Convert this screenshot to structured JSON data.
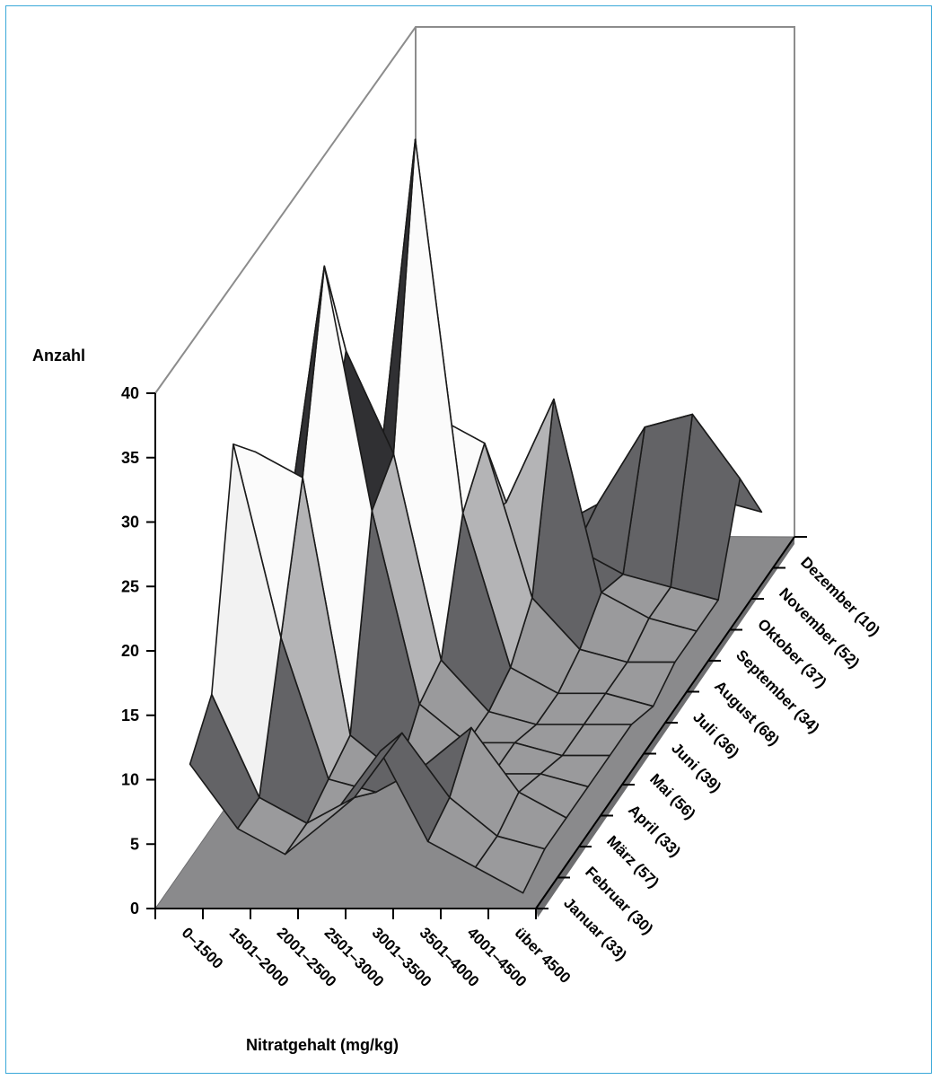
{
  "chart_data": {
    "type": "surface",
    "title": "",
    "zlabel": "Anzahl",
    "xlabel": "Nitratgehalt (mg/kg)",
    "zlim": [
      0,
      40
    ],
    "zticks": [
      "0",
      "5",
      "10",
      "15",
      "20",
      "25",
      "30",
      "35",
      "40"
    ],
    "x_categories": [
      "0–1500",
      "1501–2000",
      "2001–2500",
      "2501–3000",
      "3001–3500",
      "3501–4000",
      "4001–4500",
      "über 4500"
    ],
    "y_categories": [
      "Januar (33)",
      "Februar (30)",
      "März (57)",
      "April (33)",
      "Mai (56)",
      "Juni (39)",
      "Juli (36)",
      "August (68)",
      "September (34)",
      "Oktober (37)",
      "November (52)",
      "Dezember (10)"
    ],
    "band_colors": [
      "#9a9a9c",
      "#636366",
      "#b4b4b6",
      "#f2f2f2",
      "#fbfbfb",
      "#303033",
      "#a3a3a5",
      "#7b7b7e",
      "#d9d9d9"
    ],
    "floor_color": "#8a8a8c",
    "values": [
      [
        10,
        5,
        3,
        6,
        11,
        4,
        2,
        0
      ],
      [
        13,
        5,
        3,
        5,
        10,
        5,
        2,
        1
      ],
      [
        30,
        15,
        4,
        3,
        5,
        8,
        3,
        1
      ],
      [
        27,
        25,
        5,
        2,
        3,
        2,
        2,
        1
      ],
      [
        13,
        39,
        20,
        5,
        2,
        2,
        1,
        1
      ],
      [
        5,
        30,
        22,
        6,
        2,
        1,
        1,
        1
      ],
      [
        3,
        10,
        44,
        15,
        3,
        1,
        1,
        0
      ],
      [
        2,
        6,
        20,
        18,
        6,
        2,
        1,
        1
      ],
      [
        1,
        4,
        8,
        11,
        19,
        4,
        2,
        1
      ],
      [
        1,
        2,
        4,
        6,
        5,
        3,
        2,
        1
      ],
      [
        1,
        2,
        2,
        4,
        6,
        12,
        13,
        8
      ],
      [
        1,
        1,
        2,
        2,
        3,
        4,
        4,
        3
      ]
    ]
  }
}
